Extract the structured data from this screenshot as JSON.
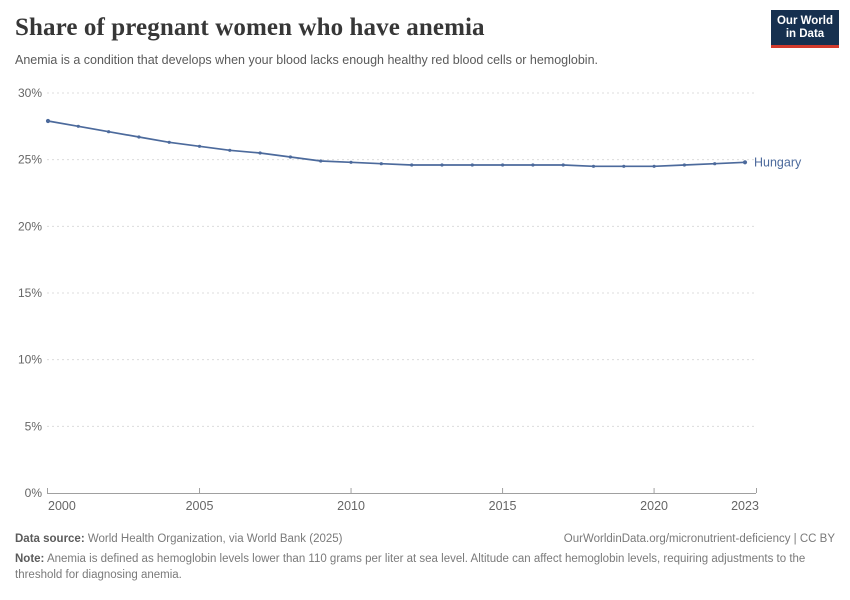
{
  "header": {
    "title": "Share of pregnant women who have anemia",
    "subtitle": "Anemia is a condition that develops when your blood lacks enough healthy red blood cells or hemoglobin.",
    "logo": {
      "line1": "Our World",
      "line2": "in Data",
      "bg_color": "#16304f",
      "stripe_color": "#d23a2c"
    }
  },
  "chart_data": {
    "type": "line",
    "title": "Share of pregnant women who have anemia",
    "x": [
      2000,
      2001,
      2002,
      2003,
      2004,
      2005,
      2006,
      2007,
      2008,
      2009,
      2010,
      2011,
      2012,
      2013,
      2014,
      2015,
      2016,
      2017,
      2018,
      2019,
      2020,
      2021,
      2022,
      2023
    ],
    "series": [
      {
        "name": "Hungary",
        "color": "#4C6A9C",
        "values": [
          27.9,
          27.5,
          27.1,
          26.7,
          26.3,
          26.0,
          25.7,
          25.5,
          25.2,
          24.9,
          24.8,
          24.7,
          24.6,
          24.6,
          24.6,
          24.6,
          24.6,
          24.6,
          24.5,
          24.5,
          24.5,
          24.6,
          24.7,
          24.8
        ]
      }
    ],
    "xlabel": "",
    "ylabel": "",
    "ylim": [
      0,
      30
    ],
    "yticks": [
      0,
      5,
      10,
      15,
      20,
      25,
      30
    ],
    "ytick_suffix": "%",
    "xticks": [
      2000,
      2005,
      2010,
      2015,
      2020,
      2023
    ],
    "grid": "horizontal-dashed",
    "grid_color": "#dcdcdc",
    "axis_color": "#a0a0a0",
    "tick_text_color": "#666666",
    "legend_position": "end-of-line-label"
  },
  "footer": {
    "datasource_label": "Data source:",
    "datasource_value": " World Health Organization, via World Bank (2025)",
    "link": "OurWorldinData.org/micronutrient-deficiency | CC BY",
    "note_label": "Note:",
    "note_value": " Anemia is defined as hemoglobin levels lower than 110 grams per liter at sea level. Altitude can affect hemoglobin levels, requiring adjustments to the threshold for diagnosing anemia."
  }
}
